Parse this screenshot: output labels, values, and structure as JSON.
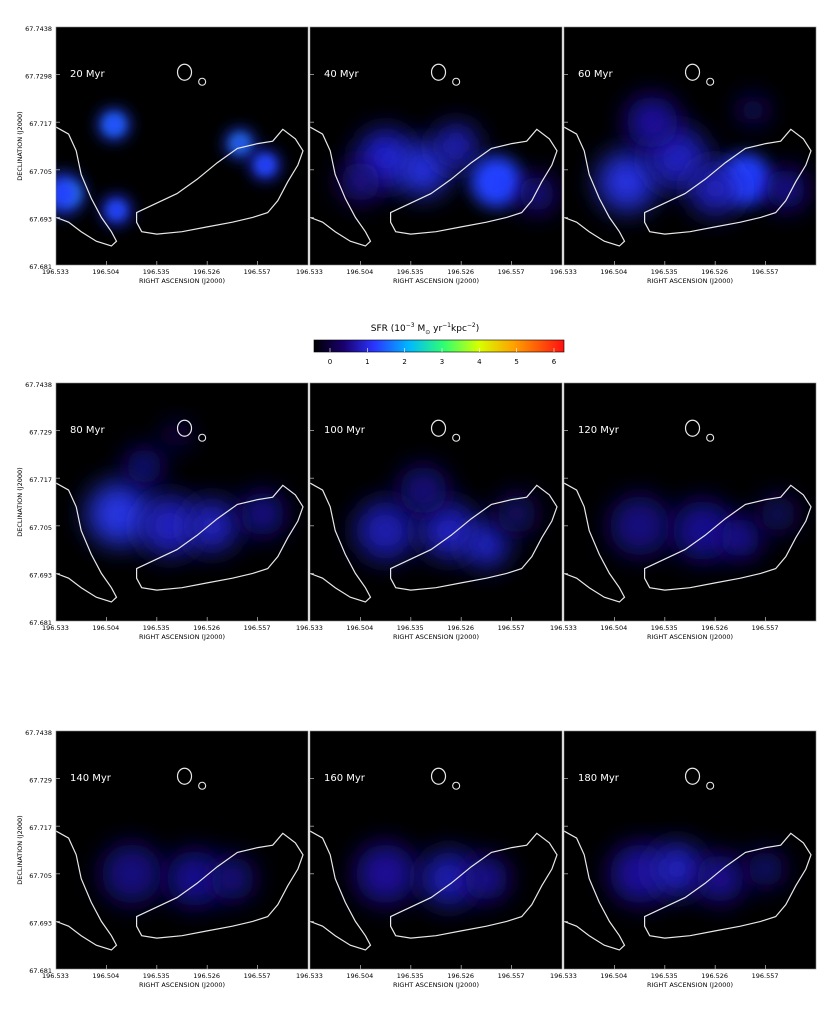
{
  "figure": {
    "colorbar": {
      "label_prefix": "SFR",
      "label_units": "(10",
      "label_exp": "−3",
      "label_rest": " M",
      "label_sub": "⊙",
      "label_tail": " yr",
      "label_exp2": "−1",
      "label_tail2": "kpc",
      "label_exp3": "−2",
      "label_close": ")",
      "ticks": [
        "0",
        "1",
        "2",
        "3",
        "4",
        "5",
        "6"
      ],
      "range": [
        0,
        6
      ],
      "colormap": [
        "#000000",
        "#20008a",
        "#2240ff",
        "#00c0ff",
        "#30ff80",
        "#d0ff00",
        "#ffb000",
        "#ff2000"
      ]
    },
    "y_tick_labels_rows": [
      [
        "67.7438",
        "67.7298",
        "67.717",
        "67.705",
        "67.693",
        "67.681"
      ],
      [
        "67.7438",
        "67.729",
        "67.717",
        "67.705",
        "67.693",
        "67.681"
      ],
      [
        "67.7438",
        "67.729",
        "67.717",
        "67.705",
        "67.693",
        "67.681"
      ]
    ],
    "x_tick_labels": [
      "196.533",
      "196.504",
      "196.535",
      "196.526",
      "196.557"
    ],
    "x_tick_labels_col1": [
      "196.533",
      "196.504",
      "196.535",
      "196.526",
      "196.557"
    ],
    "x_tick_labels_col2": [
      "196.533",
      "196.504",
      "196.535",
      "196.526",
      "196.557"
    ],
    "xlabel": "RIGHT ASCENSION (J2000)",
    "ylabel": "DECLINATION (J2000)",
    "outline_color": "#e8e8e8"
  },
  "chart_data": {
    "type": "heatmap",
    "panels": [
      {
        "label": "20 Myr"
      },
      {
        "label": "40 Myr"
      },
      {
        "label": "60 Myr"
      },
      {
        "label": "80 Myr"
      },
      {
        "label": "100 Myr"
      },
      {
        "label": "120 Myr"
      },
      {
        "label": "140 Myr"
      },
      {
        "label": "160 Myr"
      },
      {
        "label": "180 Myr"
      }
    ],
    "xlabel": "RIGHT ASCENSION (J2000)",
    "ylabel": "DECLINATION (J2000)",
    "colorbar_ticks": [
      0,
      1,
      2,
      3,
      4,
      5,
      6
    ]
  }
}
